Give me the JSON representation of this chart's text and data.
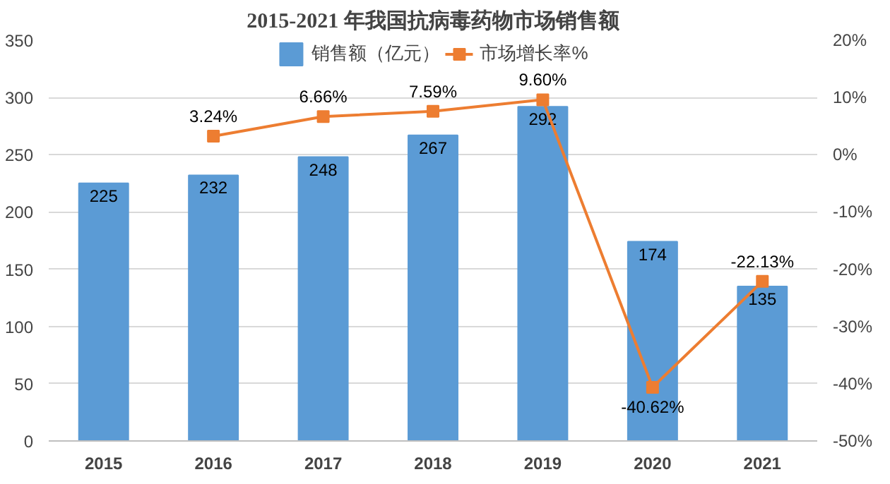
{
  "chart_data": {
    "type": "bar",
    "title": "2015-2021 年我国抗病毒药物市场销售额",
    "categories": [
      "2015",
      "2016",
      "2017",
      "2018",
      "2019",
      "2020",
      "2021"
    ],
    "series": [
      {
        "name": "销售额（亿元）",
        "color": "#5b9bd5",
        "values": [
          225,
          232,
          248,
          267,
          292,
          174,
          135
        ],
        "value_labels": [
          "225",
          "232",
          "248",
          "267",
          "292",
          "174",
          "135"
        ]
      },
      {
        "name": "市场增长率%",
        "type": "line",
        "axis": "y2",
        "color": "#ed7d31",
        "marker": "square",
        "values": [
          null,
          3.24,
          6.66,
          7.59,
          9.6,
          -40.62,
          -22.13
        ],
        "value_labels": [
          null,
          "3.24%",
          "6.66%",
          "7.59%",
          "9.60%",
          "-40.62%",
          "-22.13%"
        ]
      }
    ],
    "ylim": [
      0,
      350
    ],
    "yticks": [
      0,
      50,
      100,
      150,
      200,
      250,
      300,
      350
    ],
    "y2lim": [
      -50,
      20
    ],
    "y2ticks": [
      {
        "value": 20,
        "label": "20%"
      },
      {
        "value": 10,
        "label": "10%"
      },
      {
        "value": 0,
        "label": "0%"
      },
      {
        "value": -10,
        "label": "-10%"
      },
      {
        "value": -20,
        "label": "-20%"
      },
      {
        "value": -30,
        "label": "-30%"
      },
      {
        "value": -40,
        "label": "-40%"
      },
      {
        "value": -50,
        "label": "-50%"
      }
    ],
    "grid": "y",
    "legend": "top"
  }
}
